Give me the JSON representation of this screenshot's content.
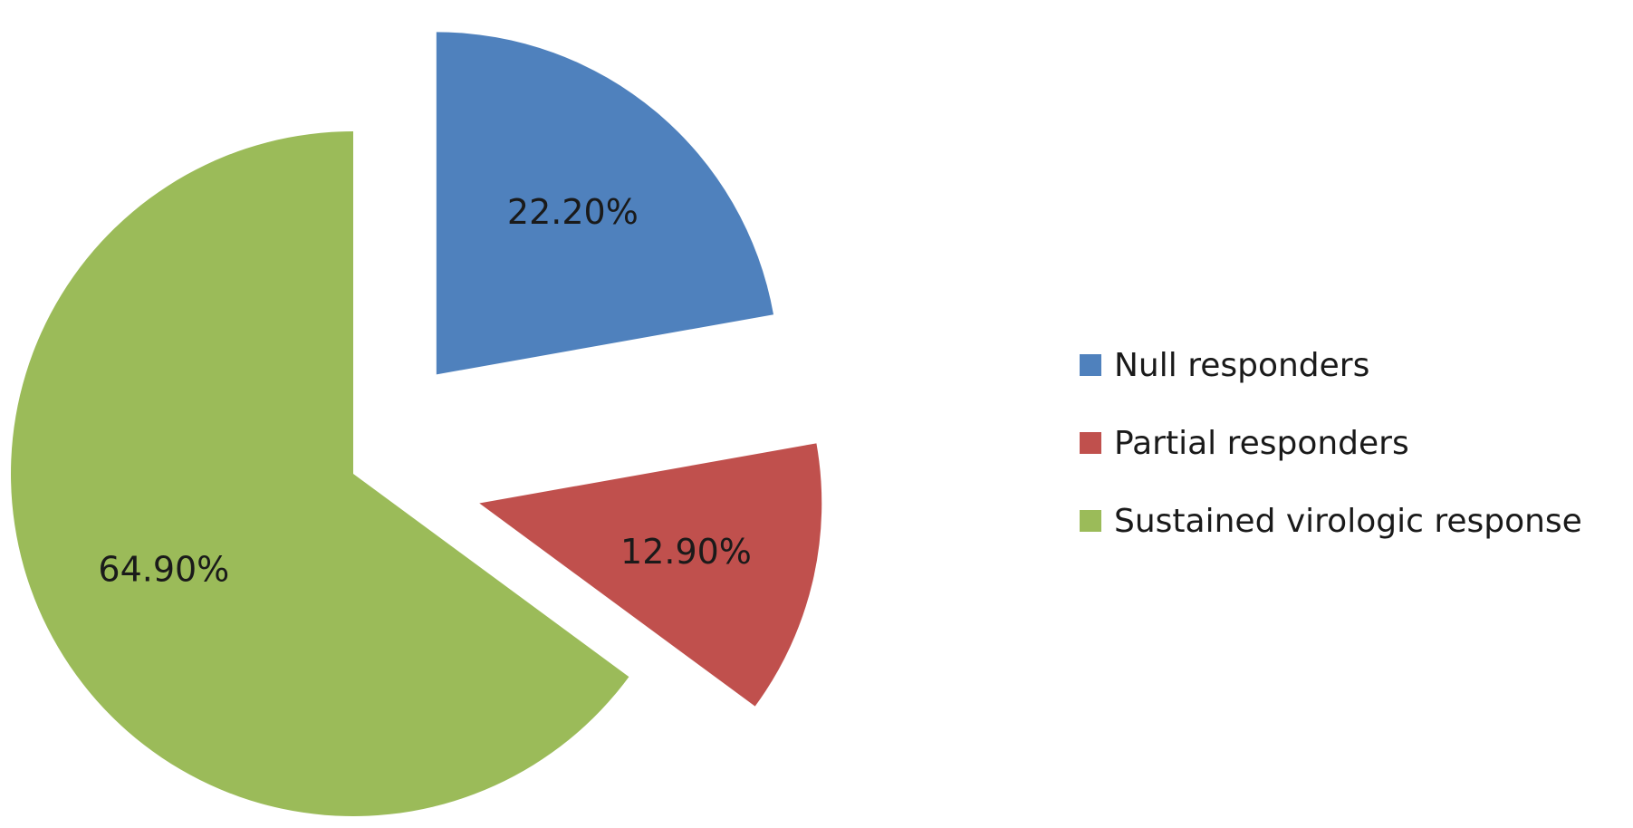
{
  "chart_data": {
    "type": "pie",
    "title": "",
    "slices": [
      {
        "name": "Null responders",
        "value": 22.2,
        "label": "22.20%",
        "color": "#4f81bd",
        "exploded": true
      },
      {
        "name": "Partial responders",
        "value": 12.9,
        "label": "12.90%",
        "color": "#c0504d",
        "exploded": true
      },
      {
        "name": "Sustained virologic response",
        "value": 64.9,
        "label": "64.90%",
        "color": "#9bbb59",
        "exploded": false
      }
    ],
    "legend": {
      "position": "right",
      "entries": [
        "Null responders",
        "Partial responders",
        "Sustained virologic response"
      ]
    },
    "start_angle": "12 o'clock",
    "direction": "clockwise"
  }
}
